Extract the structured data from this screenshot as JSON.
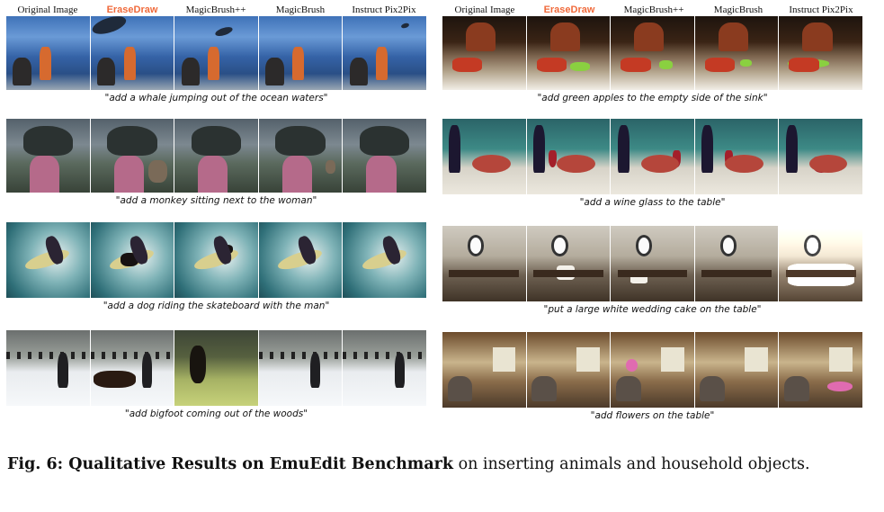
{
  "headers": {
    "left": [
      "Original Image",
      "EraseDraw",
      "MagicBrush++",
      "MagicBrush",
      "Instruct Pix2Pix"
    ],
    "right": [
      "Original Image",
      "EraseDraw",
      "MagicBrush++",
      "MagicBrush",
      "Instruct Pix2Pix"
    ],
    "highlight_color": "#f06a3b"
  },
  "left_rows": [
    {
      "caption": "\"add a whale jumping out of the ocean waters\""
    },
    {
      "caption": "\"add a monkey sitting next to the woman\""
    },
    {
      "caption": "\"add a dog riding the skateboard with the man\""
    },
    {
      "caption": "\"add bigfoot coming out of the woods\""
    }
  ],
  "right_rows": [
    {
      "caption": "\"add green apples to the empty side of the sink\""
    },
    {
      "caption": "\"add a wine glass to the table\""
    },
    {
      "caption": "\"put a large white wedding cake on the table\""
    },
    {
      "caption": "\"add flowers on the table\""
    }
  ],
  "figure_caption": {
    "lead": "Fig. 6: Qualitative Results on EmuEdit Benchmark",
    "rest": " on inserting animals and household objects."
  }
}
